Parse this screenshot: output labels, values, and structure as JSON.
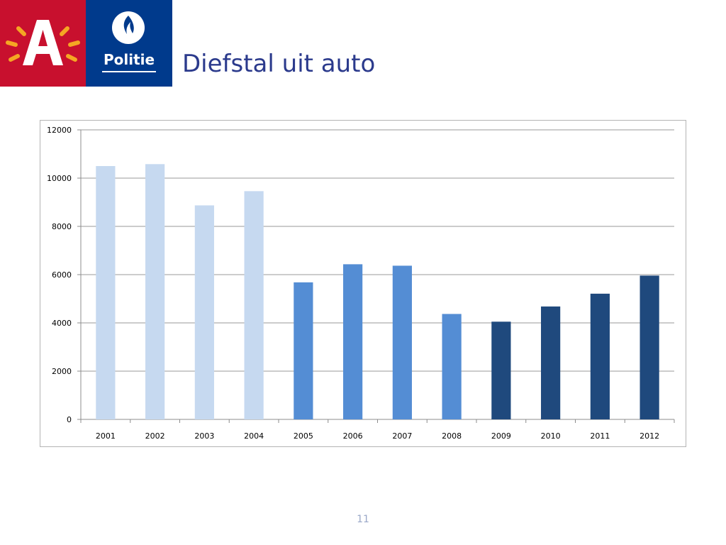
{
  "header": {
    "antwerp_logo": {
      "letter": "A",
      "colors": {
        "background": "#c8102e",
        "letter": "#ffffff",
        "rays": "#f5a623"
      }
    },
    "police_logo": {
      "label": "Politie",
      "colors": {
        "background": "#003a8c",
        "emblem": "#ffffff"
      }
    },
    "title": "Diefstal uit auto"
  },
  "chart_data": {
    "type": "bar",
    "title": "",
    "xlabel": "",
    "ylabel": "",
    "categories": [
      "2001",
      "2002",
      "2003",
      "2004",
      "2005",
      "2006",
      "2007",
      "2008",
      "2009",
      "2010",
      "2011",
      "2012"
    ],
    "values": [
      10500,
      10580,
      8870,
      9460,
      5680,
      6430,
      6370,
      4370,
      4050,
      4680,
      5210,
      5960
    ],
    "bar_colors": [
      "#c6d9f0",
      "#c6d9f0",
      "#c6d9f0",
      "#c6d9f0",
      "#548dd4",
      "#548dd4",
      "#548dd4",
      "#548dd4",
      "#1f497d",
      "#1f497d",
      "#1f497d",
      "#1f497d"
    ],
    "ylim": [
      0,
      12000
    ],
    "yticks": [
      0,
      2000,
      4000,
      6000,
      8000,
      10000,
      12000
    ],
    "grid": true,
    "legend": "none"
  },
  "footer": {
    "page_number": "11"
  }
}
